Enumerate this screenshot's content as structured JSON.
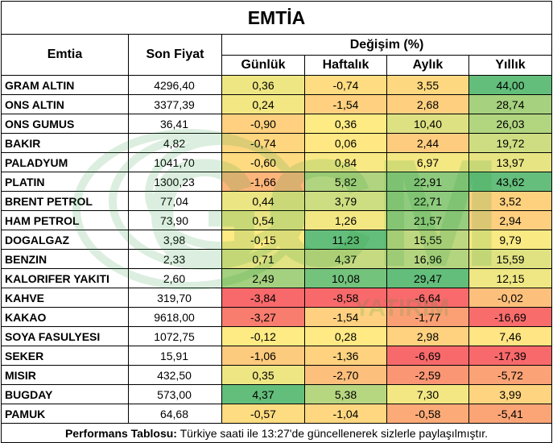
{
  "title": "EMTİA",
  "headers": {
    "emtia": "Emtia",
    "son_fiyat": "Son Fiyat",
    "degisim": "Değişim (%)",
    "gunluk": "Günlük",
    "haftalik": "Haftalık",
    "aylik": "Aylık",
    "yillik": "Yıllık"
  },
  "rows": [
    {
      "name": "GRAM ALTIN",
      "price": "4296,40",
      "gunluk": "0,36",
      "haftalik": "-0,74",
      "aylik": "3,55",
      "yillik": "44,00"
    },
    {
      "name": "ONS ALTIN",
      "price": "3377,39",
      "gunluk": "0,24",
      "haftalik": "-1,54",
      "aylik": "2,68",
      "yillik": "28,74"
    },
    {
      "name": "ONS GUMUS",
      "price": "36,41",
      "gunluk": "-0,90",
      "haftalik": "0,36",
      "aylik": "10,40",
      "yillik": "26,03"
    },
    {
      "name": "BAKIR",
      "price": "4,82",
      "gunluk": "-0,74",
      "haftalik": "0,06",
      "aylik": "2,44",
      "yillik": "19,72"
    },
    {
      "name": "PALADYUM",
      "price": "1041,70",
      "gunluk": "-0,60",
      "haftalik": "0,84",
      "aylik": "6,97",
      "yillik": "13,97"
    },
    {
      "name": "PLATIN",
      "price": "1300,23",
      "gunluk": "-1,66",
      "haftalik": "5,82",
      "aylik": "22,91",
      "yillik": "43,62"
    },
    {
      "name": "BRENT PETROL",
      "price": "77,04",
      "gunluk": "0,44",
      "haftalik": "3,79",
      "aylik": "22,71",
      "yillik": "3,52"
    },
    {
      "name": "HAM PETROL",
      "price": "73,90",
      "gunluk": "0,54",
      "haftalik": "1,26",
      "aylik": "21,57",
      "yillik": "2,94"
    },
    {
      "name": "DOGALGAZ",
      "price": "3,98",
      "gunluk": "-0,15",
      "haftalik": "11,23",
      "aylik": "15,55",
      "yillik": "9,79"
    },
    {
      "name": "BENZIN",
      "price": "2,33",
      "gunluk": "0,71",
      "haftalik": "4,37",
      "aylik": "16,96",
      "yillik": "15,59"
    },
    {
      "name": "KALORIFER YAKITI",
      "price": "2,60",
      "gunluk": "2,49",
      "haftalik": "10,08",
      "aylik": "29,47",
      "yillik": "12,15"
    },
    {
      "name": "KAHVE",
      "price": "319,70",
      "gunluk": "-3,84",
      "haftalik": "-8,58",
      "aylik": "-6,64",
      "yillik": "-0,02"
    },
    {
      "name": "KAKAO",
      "price": "9618,00",
      "gunluk": "-3,27",
      "haftalik": "-1,54",
      "aylik": "-1,77",
      "yillik": "-16,69"
    },
    {
      "name": "SOYA FASULYESI",
      "price": "1072,75",
      "gunluk": "-0,12",
      "haftalik": "0,28",
      "aylik": "2,98",
      "yillik": "7,46"
    },
    {
      "name": "SEKER",
      "price": "15,91",
      "gunluk": "-1,06",
      "haftalik": "-1,36",
      "aylik": "-6,69",
      "yillik": "-17,39"
    },
    {
      "name": "MISIR",
      "price": "432,50",
      "gunluk": "0,35",
      "haftalik": "-2,70",
      "aylik": "-2,59",
      "yillik": "-5,72"
    },
    {
      "name": "BUGDAY",
      "price": "573,00",
      "gunluk": "4,37",
      "haftalik": "5,38",
      "aylik": "7,30",
      "yillik": "3,99"
    },
    {
      "name": "PAMUK",
      "price": "64,68",
      "gunluk": "-0,57",
      "haftalik": "-1,04",
      "aylik": "-0,58",
      "yillik": "-5,41"
    }
  ],
  "footer": {
    "bold": "Performans Tablosu:",
    "text": " Türkiye saati ile 13:27'de güncellenerek sizlerle paylaşılmıştır."
  },
  "watermark": {
    "big": "GCM",
    "small": "YATIRIM"
  },
  "colors": {
    "green": "#63be7b",
    "yellow": "#ffeb84",
    "red": "#f8696b",
    "watermark": "#2e9b3e"
  }
}
